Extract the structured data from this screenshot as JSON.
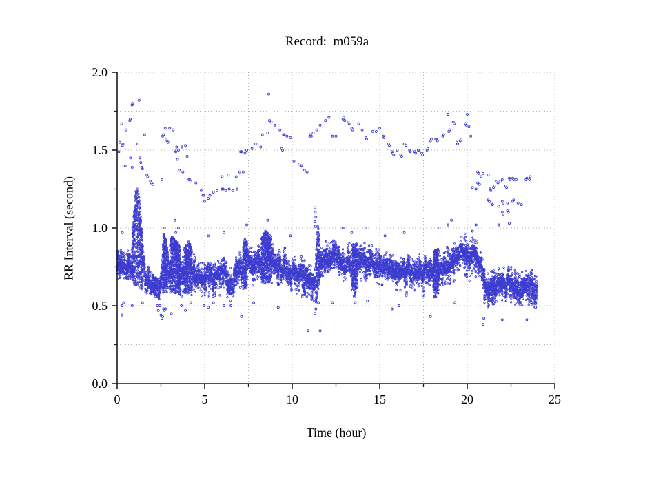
{
  "figure": {
    "title": "Record:  m059a",
    "xlabel": "Time (hour)",
    "ylabel": "RR Interval (second)"
  },
  "chart_data": {
    "type": "scatter",
    "title": "Record:  m059a",
    "xlabel": "Time (hour)",
    "ylabel": "RR Interval (second)",
    "xlim": [
      0,
      25
    ],
    "ylim": [
      0.0,
      2.0
    ],
    "x_major_ticks": [
      0,
      5,
      10,
      15,
      20,
      25
    ],
    "x_tick_labels": [
      "0",
      "5",
      "10",
      "15",
      "20",
      "25"
    ],
    "x_minor_ticks": [
      2.5,
      7.5,
      12.5,
      17.5,
      22.5
    ],
    "y_major_ticks": [
      0.0,
      0.5,
      1.0,
      1.5,
      2.0
    ],
    "y_tick_labels": [
      "0.0",
      "0.5",
      "1.0",
      "1.5",
      "2.0"
    ],
    "y_minor_ticks": [
      0.25,
      0.75,
      1.25,
      1.75
    ],
    "grid": {
      "on": true,
      "style": "dotted",
      "color": "#b3b3b3",
      "x_interval": 2.5,
      "y_interval": 0.25
    },
    "axis_color": "#1a1a1a",
    "marker": {
      "shape": "open-circle",
      "color": "#3c3ccf",
      "radius_px": 1.2
    },
    "series_description": "24-hour RR-interval tachogram: dense sinus band ~0.55-0.95 s (surge to 1.27 s near hour 1, step down to ~0.5-0.75 s after hour 21), sparse long-RR outliers 0.95-1.86 s, sparse short-RR outliers 0.34-0.53 s; data span 0-24 h",
    "band_envelope": [
      [
        0,
        0.67,
        0.87
      ],
      [
        0.5,
        0.68,
        0.85
      ],
      [
        0.8,
        0.66,
        0.86
      ],
      [
        0.9,
        0.64,
        1.0
      ],
      [
        1.0,
        0.63,
        1.2
      ],
      [
        1.1,
        0.62,
        1.27
      ],
      [
        1.25,
        0.62,
        1.22
      ],
      [
        1.4,
        0.6,
        1.0
      ],
      [
        1.5,
        0.6,
        0.82
      ],
      [
        1.7,
        0.58,
        0.77
      ],
      [
        1.9,
        0.57,
        0.72
      ],
      [
        2.2,
        0.55,
        0.68
      ],
      [
        2.45,
        0.54,
        0.66
      ],
      [
        2.55,
        0.56,
        0.8
      ],
      [
        2.65,
        0.58,
        0.97
      ],
      [
        2.8,
        0.58,
        0.92
      ],
      [
        2.95,
        0.57,
        0.82
      ],
      [
        3.1,
        0.59,
        0.95
      ],
      [
        3.3,
        0.58,
        0.93
      ],
      [
        3.5,
        0.58,
        0.9
      ],
      [
        3.7,
        0.56,
        0.84
      ],
      [
        3.9,
        0.57,
        0.88
      ],
      [
        4.1,
        0.58,
        0.92
      ],
      [
        4.35,
        0.56,
        0.84
      ],
      [
        4.6,
        0.57,
        0.79
      ],
      [
        4.9,
        0.56,
        0.77
      ],
      [
        5.2,
        0.55,
        0.77
      ],
      [
        5.5,
        0.56,
        0.79
      ],
      [
        5.8,
        0.57,
        0.84
      ],
      [
        6.0,
        0.56,
        0.86
      ],
      [
        6.2,
        0.54,
        0.78
      ],
      [
        6.45,
        0.52,
        0.76
      ],
      [
        6.7,
        0.56,
        0.8
      ],
      [
        7.0,
        0.59,
        0.85
      ],
      [
        7.3,
        0.61,
        0.93
      ],
      [
        7.6,
        0.62,
        0.89
      ],
      [
        7.9,
        0.63,
        0.9
      ],
      [
        8.2,
        0.65,
        0.94
      ],
      [
        8.5,
        0.64,
        0.99
      ],
      [
        8.7,
        0.65,
        0.96
      ],
      [
        9.0,
        0.63,
        0.9
      ],
      [
        9.3,
        0.62,
        0.89
      ],
      [
        9.6,
        0.63,
        0.87
      ],
      [
        9.9,
        0.6,
        0.85
      ],
      [
        10.2,
        0.58,
        0.83
      ],
      [
        10.5,
        0.56,
        0.82
      ],
      [
        10.8,
        0.54,
        0.79
      ],
      [
        11.1,
        0.51,
        0.75
      ],
      [
        11.35,
        0.5,
        0.78
      ],
      [
        11.45,
        0.56,
        1.05
      ],
      [
        11.55,
        0.66,
        0.95
      ],
      [
        11.8,
        0.7,
        0.91
      ],
      [
        12.1,
        0.72,
        0.92
      ],
      [
        12.5,
        0.7,
        0.92
      ],
      [
        12.9,
        0.66,
        0.9
      ],
      [
        13.3,
        0.65,
        0.91
      ],
      [
        13.55,
        0.55,
        0.89
      ],
      [
        13.8,
        0.63,
        0.91
      ],
      [
        14.2,
        0.66,
        0.92
      ],
      [
        14.6,
        0.64,
        0.9
      ],
      [
        15.0,
        0.62,
        0.89
      ],
      [
        15.4,
        0.62,
        0.87
      ],
      [
        15.8,
        0.6,
        0.86
      ],
      [
        16.2,
        0.58,
        0.86
      ],
      [
        16.6,
        0.56,
        0.84
      ],
      [
        17.0,
        0.6,
        0.85
      ],
      [
        17.4,
        0.56,
        0.82
      ],
      [
        17.8,
        0.58,
        0.84
      ],
      [
        18.2,
        0.54,
        0.86
      ],
      [
        18.6,
        0.61,
        0.88
      ],
      [
        19.0,
        0.62,
        0.91
      ],
      [
        19.4,
        0.66,
        0.96
      ],
      [
        19.8,
        0.67,
        0.97
      ],
      [
        20.1,
        0.66,
        0.96
      ],
      [
        20.45,
        0.68,
        0.95
      ],
      [
        20.75,
        0.66,
        0.88
      ],
      [
        20.9,
        0.6,
        0.8
      ],
      [
        21.0,
        0.49,
        0.74
      ],
      [
        21.3,
        0.48,
        0.77
      ],
      [
        21.6,
        0.5,
        0.74
      ],
      [
        21.9,
        0.52,
        0.77
      ],
      [
        22.2,
        0.49,
        0.74
      ],
      [
        22.5,
        0.51,
        0.76
      ],
      [
        22.8,
        0.48,
        0.72
      ],
      [
        23.1,
        0.5,
        0.75
      ],
      [
        23.4,
        0.48,
        0.73
      ],
      [
        23.7,
        0.49,
        0.74
      ],
      [
        24.0,
        0.5,
        0.7
      ]
    ],
    "upper_outliers": [
      [
        0.1,
        1.49
      ],
      [
        0.15,
        1.55
      ],
      [
        0.26,
        1.67
      ],
      [
        0.3,
        1.53
      ],
      [
        0.33,
        1.54
      ],
      [
        0.46,
        1.4
      ],
      [
        0.5,
        1.63
      ],
      [
        0.72,
        1.69
      ],
      [
        0.75,
        1.7
      ],
      [
        0.76,
        1.45
      ],
      [
        0.85,
        1.79
      ],
      [
        0.88,
        1.8
      ],
      [
        0.86,
        1.39
      ],
      [
        1.18,
        1.54
      ],
      [
        1.25,
        1.82
      ],
      [
        1.3,
        1.45
      ],
      [
        1.35,
        1.42
      ],
      [
        1.4,
        1.39
      ],
      [
        1.45,
        1.38
      ],
      [
        1.57,
        1.6
      ],
      [
        1.7,
        1.34
      ],
      [
        1.75,
        1.33
      ],
      [
        1.9,
        1.3
      ],
      [
        1.95,
        1.29
      ],
      [
        2.05,
        1.28
      ],
      [
        2.56,
        1.31
      ],
      [
        2.6,
        1.59
      ],
      [
        2.65,
        1.6
      ],
      [
        2.75,
        1.64
      ],
      [
        2.8,
        1.57
      ],
      [
        2.85,
        1.56
      ],
      [
        2.9,
        1.55
      ],
      [
        3.0,
        1.64
      ],
      [
        3.2,
        1.63
      ],
      [
        3.3,
        1.5
      ],
      [
        3.35,
        1.49
      ],
      [
        3.4,
        1.52
      ],
      [
        3.45,
        1.44
      ],
      [
        3.5,
        1.5
      ],
      [
        3.55,
        1.37
      ],
      [
        3.7,
        1.52
      ],
      [
        3.75,
        1.36
      ],
      [
        3.9,
        1.53
      ],
      [
        4.0,
        1.46
      ],
      [
        4.1,
        1.31
      ],
      [
        4.15,
        1.31
      ],
      [
        4.2,
        1.3
      ],
      [
        4.5,
        1.29
      ],
      [
        4.8,
        1.24
      ],
      [
        4.9,
        1.21
      ],
      [
        4.95,
        1.21
      ],
      [
        5.0,
        1.17
      ],
      [
        5.2,
        1.19
      ],
      [
        5.3,
        1.21
      ],
      [
        5.5,
        1.23
      ],
      [
        5.7,
        1.24
      ],
      [
        6.0,
        1.33
      ],
      [
        6.0,
        1.25
      ],
      [
        6.05,
        1.25
      ],
      [
        6.2,
        1.24
      ],
      [
        6.35,
        1.34
      ],
      [
        6.4,
        1.25
      ],
      [
        6.6,
        1.24
      ],
      [
        6.8,
        1.33
      ],
      [
        6.85,
        1.25
      ],
      [
        7.0,
        1.36
      ],
      [
        7.05,
        1.49
      ],
      [
        7.1,
        1.49
      ],
      [
        7.2,
        1.36
      ],
      [
        7.3,
        1.48
      ],
      [
        7.4,
        1.5
      ],
      [
        7.7,
        1.51
      ],
      [
        7.9,
        1.54
      ],
      [
        8.0,
        1.54
      ],
      [
        8.2,
        1.52
      ],
      [
        8.3,
        1.6
      ],
      [
        8.6,
        1.61
      ],
      [
        8.66,
        1.86
      ],
      [
        8.7,
        1.69
      ],
      [
        8.8,
        1.68
      ],
      [
        9.0,
        1.66
      ],
      [
        9.3,
        1.63
      ],
      [
        9.4,
        1.51
      ],
      [
        9.45,
        1.5
      ],
      [
        9.5,
        1.6
      ],
      [
        9.55,
        1.6
      ],
      [
        9.7,
        1.59
      ],
      [
        9.9,
        1.58
      ],
      [
        10.1,
        1.43
      ],
      [
        10.4,
        1.41
      ],
      [
        10.5,
        1.4
      ],
      [
        10.55,
        1.4
      ],
      [
        10.7,
        1.37
      ],
      [
        10.85,
        1.36
      ],
      [
        11.0,
        1.59
      ],
      [
        11.05,
        1.6
      ],
      [
        11.1,
        1.59
      ],
      [
        11.2,
        1.61
      ],
      [
        11.4,
        1.63
      ],
      [
        11.6,
        1.66
      ],
      [
        11.9,
        1.69
      ],
      [
        12.1,
        1.71
      ],
      [
        12.3,
        1.59
      ],
      [
        12.5,
        1.59
      ],
      [
        12.9,
        1.7
      ],
      [
        12.95,
        1.71
      ],
      [
        13.0,
        1.69
      ],
      [
        13.2,
        1.68
      ],
      [
        13.25,
        1.67
      ],
      [
        13.4,
        1.64
      ],
      [
        13.45,
        1.63
      ],
      [
        13.8,
        1.67
      ],
      [
        14.0,
        1.63
      ],
      [
        14.2,
        1.58
      ],
      [
        14.25,
        1.57
      ],
      [
        14.6,
        1.62
      ],
      [
        14.8,
        1.62
      ],
      [
        15.0,
        1.64
      ],
      [
        15.2,
        1.59
      ],
      [
        15.25,
        1.58
      ],
      [
        15.5,
        1.54
      ],
      [
        15.55,
        1.53
      ],
      [
        15.7,
        1.49
      ],
      [
        15.75,
        1.48
      ],
      [
        15.8,
        1.47
      ],
      [
        16.0,
        1.5
      ],
      [
        16.2,
        1.47
      ],
      [
        16.25,
        1.46
      ],
      [
        16.4,
        1.54
      ],
      [
        16.5,
        1.53
      ],
      [
        16.7,
        1.5
      ],
      [
        16.75,
        1.49
      ],
      [
        17.0,
        1.49
      ],
      [
        17.05,
        1.48
      ],
      [
        17.2,
        1.5
      ],
      [
        17.25,
        1.5
      ],
      [
        17.4,
        1.48
      ],
      [
        17.45,
        1.47
      ],
      [
        17.7,
        1.5
      ],
      [
        17.75,
        1.51
      ],
      [
        17.9,
        1.56
      ],
      [
        17.95,
        1.57
      ],
      [
        18.2,
        1.57
      ],
      [
        18.25,
        1.57
      ],
      [
        18.3,
        1.56
      ],
      [
        18.6,
        1.59
      ],
      [
        18.65,
        1.6
      ],
      [
        18.9,
        1.73
      ],
      [
        18.95,
        1.62
      ],
      [
        19.0,
        1.63
      ],
      [
        19.2,
        1.68
      ],
      [
        19.25,
        1.67
      ],
      [
        19.4,
        1.55
      ],
      [
        19.45,
        1.54
      ],
      [
        19.6,
        1.56
      ],
      [
        19.65,
        1.57
      ],
      [
        19.9,
        1.67
      ],
      [
        19.95,
        1.66
      ],
      [
        20.0,
        1.73
      ],
      [
        20.1,
        1.65
      ],
      [
        20.2,
        1.59
      ],
      [
        20.3,
        1.26
      ],
      [
        20.5,
        1.25
      ],
      [
        20.5,
        1.02
      ],
      [
        20.6,
        1.36
      ],
      [
        20.65,
        1.35
      ],
      [
        20.6,
        1.29
      ],
      [
        20.7,
        1.28
      ],
      [
        20.8,
        1.33
      ],
      [
        20.9,
        1.35
      ],
      [
        21.2,
        1.34
      ],
      [
        21.2,
        1.18
      ],
      [
        21.25,
        1.17
      ],
      [
        21.3,
        1.25
      ],
      [
        21.35,
        1.24
      ],
      [
        21.4,
        1.16
      ],
      [
        21.45,
        1.15
      ],
      [
        21.5,
        1.26
      ],
      [
        21.55,
        1.27
      ],
      [
        21.7,
        1.3
      ],
      [
        21.75,
        1.29
      ],
      [
        21.8,
        1.14
      ],
      [
        21.8,
        1.02
      ],
      [
        21.9,
        1.3
      ],
      [
        22.0,
        1.31
      ],
      [
        22.0,
        1.17
      ],
      [
        22.05,
        1.16
      ],
      [
        22.0,
        1.1
      ],
      [
        22.05,
        1.09
      ],
      [
        22.2,
        1.27
      ],
      [
        22.25,
        1.26
      ],
      [
        22.3,
        1.16
      ],
      [
        22.3,
        1.11
      ],
      [
        22.35,
        1.1
      ],
      [
        22.4,
        1.32
      ],
      [
        22.45,
        1.31
      ],
      [
        22.4,
        1.03
      ],
      [
        22.6,
        1.32
      ],
      [
        22.65,
        1.31
      ],
      [
        22.6,
        1.17
      ],
      [
        22.65,
        1.18
      ],
      [
        22.8,
        1.31
      ],
      [
        22.9,
        1.16
      ],
      [
        23.1,
        1.15
      ],
      [
        23.35,
        1.31
      ],
      [
        23.4,
        1.32
      ],
      [
        23.55,
        1.31
      ],
      [
        23.6,
        1.33
      ],
      [
        0.3,
        0.97
      ],
      [
        2.7,
        1.0
      ],
      [
        3.3,
        1.05
      ],
      [
        3.35,
        0.97
      ],
      [
        3.5,
        1.0
      ],
      [
        5.2,
        0.95
      ],
      [
        6.1,
        0.97
      ],
      [
        7.4,
        1.02
      ],
      [
        8.6,
        1.05
      ],
      [
        9.9,
        0.95
      ],
      [
        11.3,
        1.13
      ],
      [
        11.32,
        1.1
      ],
      [
        11.35,
        1.07
      ],
      [
        11.3,
        1.04
      ],
      [
        11.33,
        1.01
      ],
      [
        12.9,
        1.0
      ],
      [
        13.4,
        0.97
      ],
      [
        14.2,
        1.0
      ],
      [
        15.3,
        0.95
      ],
      [
        16.4,
        0.97
      ],
      [
        18.4,
        1.0
      ],
      [
        18.9,
        1.02
      ],
      [
        19.1,
        1.05
      ],
      [
        20.3,
        0.98
      ]
    ],
    "lower_outliers": [
      [
        0.27,
        0.44
      ],
      [
        0.29,
        0.5
      ],
      [
        0.37,
        0.52
      ],
      [
        0.86,
        0.5
      ],
      [
        1.45,
        0.52
      ],
      [
        2.3,
        0.5
      ],
      [
        2.35,
        0.47
      ],
      [
        2.45,
        0.5
      ],
      [
        2.5,
        0.44
      ],
      [
        2.55,
        0.42
      ],
      [
        2.6,
        0.43
      ],
      [
        2.65,
        0.48
      ],
      [
        2.7,
        0.47
      ],
      [
        2.76,
        0.48
      ],
      [
        3.1,
        0.45
      ],
      [
        3.67,
        0.5
      ],
      [
        3.9,
        0.47
      ],
      [
        4.2,
        0.52
      ],
      [
        4.95,
        0.5
      ],
      [
        5.2,
        0.49
      ],
      [
        5.5,
        0.52
      ],
      [
        6.1,
        0.5
      ],
      [
        6.5,
        0.5
      ],
      [
        7.1,
        0.43
      ],
      [
        7.8,
        0.52
      ],
      [
        9.2,
        0.49
      ],
      [
        10.9,
        0.34
      ],
      [
        11.3,
        0.45
      ],
      [
        11.35,
        0.48
      ],
      [
        11.5,
        0.52
      ],
      [
        11.6,
        0.34
      ],
      [
        12.3,
        0.52
      ],
      [
        13.6,
        0.52
      ],
      [
        14.3,
        0.53
      ],
      [
        15.7,
        0.48
      ],
      [
        16.1,
        0.5
      ],
      [
        17.9,
        0.43
      ],
      [
        19.3,
        0.52
      ],
      [
        20.9,
        0.38
      ],
      [
        20.95,
        0.42
      ],
      [
        22.0,
        0.41
      ],
      [
        23.4,
        0.41
      ],
      [
        23.9,
        0.49
      ]
    ]
  }
}
